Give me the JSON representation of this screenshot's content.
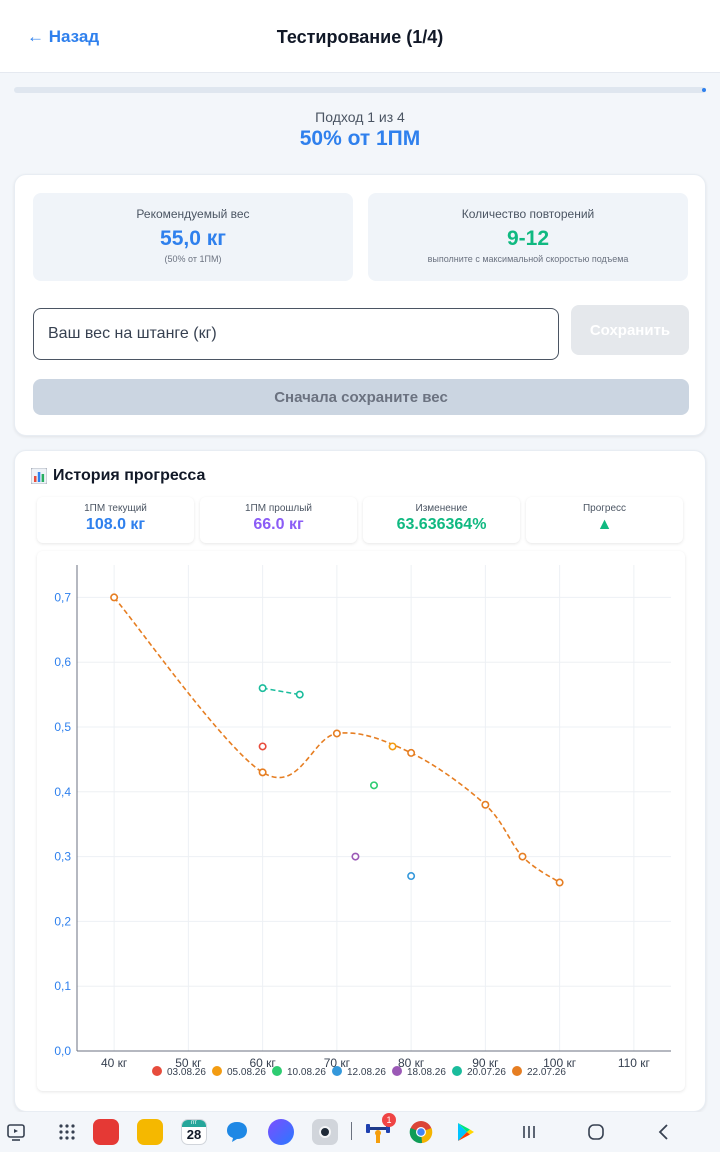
{
  "header": {
    "back_label": "← Назад",
    "title": "Тестирование (1/4)"
  },
  "progress": {
    "value": 0.25
  },
  "set": {
    "label": "Подход 1 из 4",
    "percent": "50% от 1ПМ"
  },
  "recommended": {
    "label": "Рекомендуемый вес",
    "value": "55,0 кг",
    "sub": "(50% от 1ПМ)"
  },
  "reps": {
    "label": "Количество повторений",
    "value": "9-12",
    "sub": "выполните с максимальной скоростью подъема"
  },
  "form": {
    "weight_placeholder": "Ваш вес на штанге (кг)",
    "save_label": "Сохранить",
    "first_save_label": "Сначала сохраните вес"
  },
  "history": {
    "title": "История прогресса",
    "stats": [
      {
        "label": "1ПМ текущий",
        "value": "108.0 кг",
        "color": "#2f80ed"
      },
      {
        "label": "1ПМ прошлый",
        "value": "66.0 кг",
        "color": "#8b5cf6"
      },
      {
        "label": "Изменение",
        "value": "63.636364%",
        "color": "#10b981"
      },
      {
        "label": "Прогресс",
        "value": "▲",
        "color": "#10b981"
      }
    ]
  },
  "chart_data": {
    "type": "scatter",
    "xlim": [
      35,
      115
    ],
    "ylim": [
      0,
      0.75
    ],
    "x_ticks": [
      40,
      50,
      60,
      70,
      80,
      90,
      100,
      110
    ],
    "x_tick_labels": [
      "40 кг",
      "50 кг",
      "60 кг",
      "70 кг",
      "80 кг",
      "90 кг",
      "100 кг",
      "110 кг"
    ],
    "y_ticks": [
      0,
      0.1,
      0.2,
      0.3,
      0.4,
      0.5,
      0.6,
      0.7
    ],
    "y_tick_labels": [
      "0,0",
      "0,1",
      "0,2",
      "0,3",
      "0,4",
      "0,5",
      "0,6",
      "0,7"
    ],
    "grid": true,
    "legend_position": "bottom",
    "series": [
      {
        "name": "03.08.26",
        "color": "#e74c3c",
        "line": false,
        "points": [
          [
            60,
            0.47
          ]
        ]
      },
      {
        "name": "05.08.26",
        "color": "#f39c12",
        "line": false,
        "points": [
          [
            77.5,
            0.47
          ]
        ]
      },
      {
        "name": "10.08.26",
        "color": "#2ecc71",
        "line": false,
        "points": [
          [
            75,
            0.41
          ]
        ]
      },
      {
        "name": "12.08.26",
        "color": "#3498db",
        "line": false,
        "points": [
          [
            80,
            0.27
          ]
        ]
      },
      {
        "name": "18.08.26",
        "color": "#9b59b6",
        "line": false,
        "points": [
          [
            72.5,
            0.3
          ]
        ]
      },
      {
        "name": "20.07.26",
        "color": "#1abc9c",
        "line": true,
        "points": [
          [
            60,
            0.56
          ],
          [
            65,
            0.55
          ]
        ]
      },
      {
        "name": "22.07.26",
        "color": "#e67e22",
        "line": true,
        "points": [
          [
            40,
            0.7
          ],
          [
            60,
            0.43
          ],
          [
            70,
            0.49
          ],
          [
            80,
            0.46
          ],
          [
            90,
            0.38
          ],
          [
            95,
            0.3
          ],
          [
            100,
            0.26
          ]
        ]
      }
    ]
  },
  "navbar": {
    "calendar_day": "28",
    "calendar_weekday": "пт",
    "badge_count": "1"
  }
}
